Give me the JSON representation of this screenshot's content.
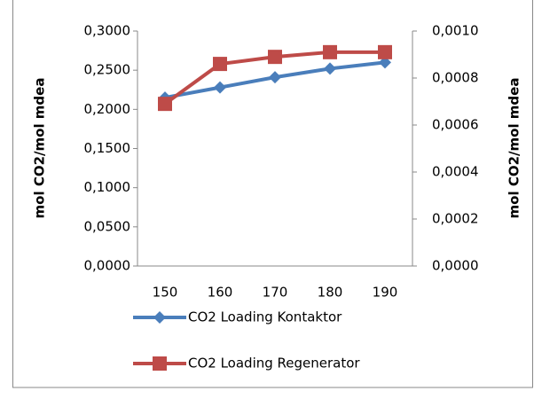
{
  "chart_data": {
    "type": "line",
    "categories": [
      "150",
      "160",
      "170",
      "180",
      "190"
    ],
    "y_label": "mol CO2/mol mdea",
    "y2_label": "mol CO2/mol mdea",
    "series": [
      {
        "name": "CO2 Loading Kontaktor",
        "color": "#4a7ebb",
        "marker": "diamond",
        "values": [
          0.215,
          0.228,
          0.241,
          0.252,
          0.26
        ]
      },
      {
        "name": "CO2 Loading Regenerator",
        "color": "#be4b48",
        "marker": "square",
        "axis": "y2",
        "values": [
          0.00069,
          0.00086,
          0.00089,
          0.00091,
          0.00091
        ]
      }
    ],
    "ylim": [
      0,
      0.3
    ],
    "yticks": [
      {
        "value": 0,
        "label": "0,0000"
      },
      {
        "value": 0.05,
        "label": "0,0500"
      },
      {
        "value": 0.1,
        "label": "0,1000"
      },
      {
        "value": 0.15,
        "label": "0,1500"
      },
      {
        "value": 0.2,
        "label": "0,2000"
      },
      {
        "value": 0.25,
        "label": "0,2500"
      },
      {
        "value": 0.3,
        "label": "0,3000"
      }
    ],
    "y2lim": [
      0,
      0.001
    ],
    "y2ticks": [
      {
        "value": 0,
        "label": "0,0000"
      },
      {
        "value": 0.0002,
        "label": "0,0002"
      },
      {
        "value": 0.0004,
        "label": "0,0004"
      },
      {
        "value": 0.0006,
        "label": "0,0006"
      },
      {
        "value": 0.0008,
        "label": "0,0008"
      },
      {
        "value": 0.001,
        "label": "0,0010"
      }
    ],
    "legend": "bottom",
    "grid": false
  }
}
